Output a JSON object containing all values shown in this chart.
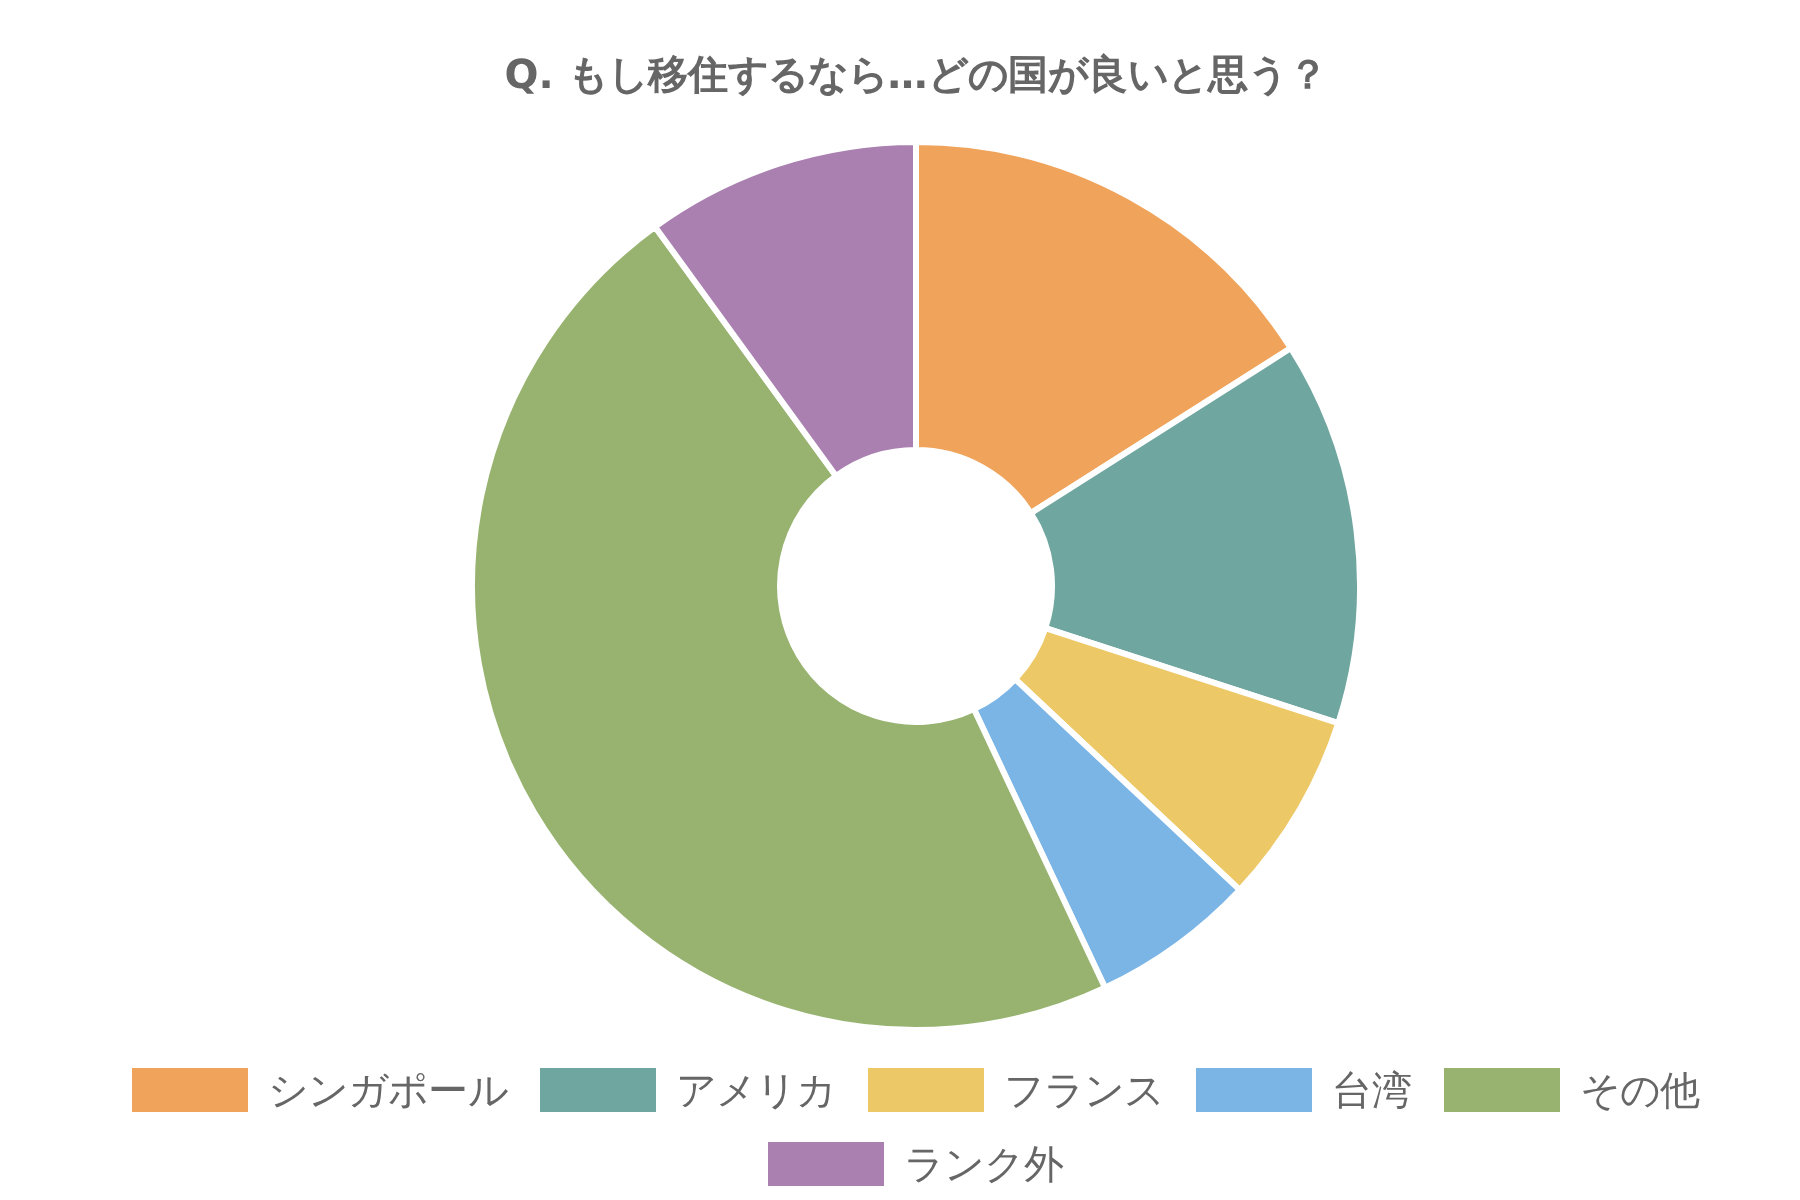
{
  "chart_data": {
    "type": "donut",
    "title": "Q. もし移住するなら…どの国が良いと思う？",
    "categories": [
      "シンガポール",
      "アメリカ",
      "フランス",
      "台湾",
      "その他",
      "ランク外"
    ],
    "values": [
      16,
      14,
      7,
      6,
      47,
      10
    ],
    "colors": [
      "#f0a35a",
      "#70a6a0",
      "#edc867",
      "#7bb5e6",
      "#97b36f",
      "#a980b0"
    ],
    "legend": "bottom"
  }
}
